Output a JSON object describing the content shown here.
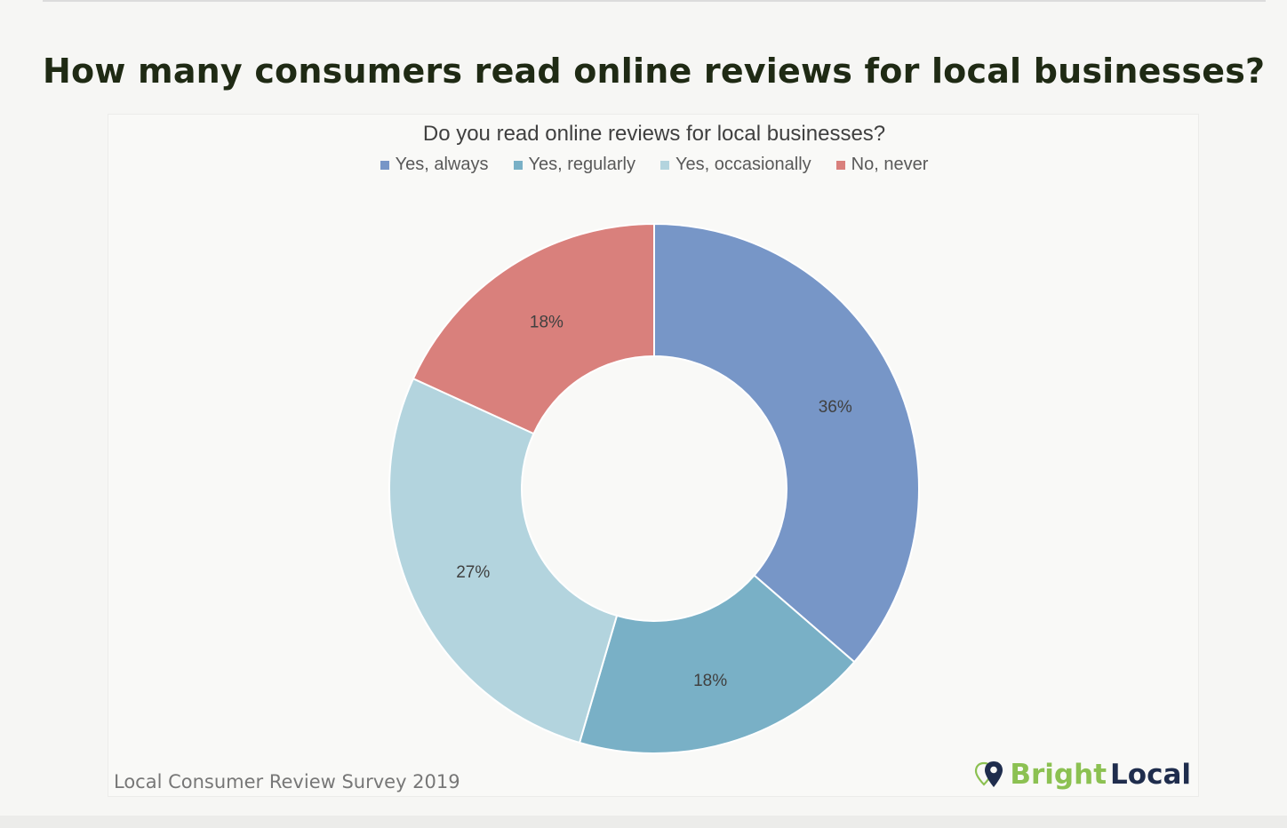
{
  "page": {
    "title": "How many consumers read online reviews for local businesses?"
  },
  "footer": {
    "source": "Local Consumer Review Survey 2019"
  },
  "logo": {
    "text_bright": "Bright",
    "text_local": "Local",
    "icon": "map-pin-icon",
    "colors": {
      "bright": "#8cc152",
      "local": "#1f2d4d"
    }
  },
  "chart_data": {
    "type": "pie",
    "variant": "donut",
    "title": "Do you read online reviews for local businesses?",
    "legend_position": "top",
    "categories": [
      "Yes, always",
      "Yes, regularly",
      "Yes, occasionally",
      "No, never"
    ],
    "values": [
      36,
      18,
      27,
      18
    ],
    "labels": [
      "36%",
      "18%",
      "27%",
      "18%"
    ],
    "colors": [
      "#7796c7",
      "#79b0c6",
      "#b3d4de",
      "#d9807c"
    ]
  }
}
